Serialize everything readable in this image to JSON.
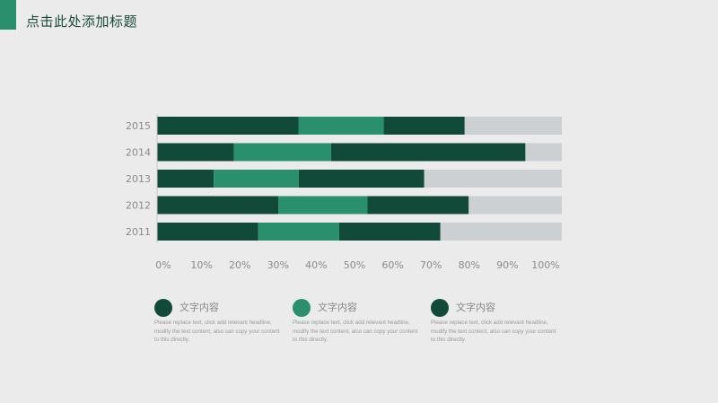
{
  "title": "点击此处添加标题",
  "colors": {
    "accent": "#2a8f6d",
    "dark": "#114a38",
    "mid": "#2a8f6d",
    "rest": "#ccd0d2"
  },
  "chart_data": {
    "type": "bar",
    "orientation": "horizontal",
    "stacked": true,
    "categories": [
      "2015",
      "2014",
      "2013",
      "2012",
      "2011"
    ],
    "series": [
      {
        "values": [
          35,
          19,
          14,
          30,
          25
        ],
        "color": "#114a38"
      },
      {
        "values": [
          21,
          24,
          21,
          22,
          20
        ],
        "color": "#2a8f6d"
      },
      {
        "values": [
          20,
          48,
          31,
          25,
          25
        ],
        "color": "#114a38"
      },
      {
        "values": [
          24,
          9,
          34,
          23,
          30
        ],
        "color": "#ccd0d2"
      }
    ],
    "x_ticks": [
      "0%",
      "10%",
      "20%",
      "30%",
      "40%",
      "50%",
      "60%",
      "70%",
      "80%",
      "90%",
      "100%"
    ],
    "xlim": [
      0,
      100
    ],
    "grid": false
  },
  "legend": [
    {
      "label": "文字内容",
      "color": "#114a38",
      "desc": "Please replace text, click add relevant headline, modify the text content, also can copy your content to this directly."
    },
    {
      "label": "文字内容",
      "color": "#2a8f6d",
      "desc": "Please replace text, click add relevant headline, modify the text content, also can copy your content to this directly."
    },
    {
      "label": "文字内容",
      "color": "#114a38",
      "desc": "Please replace text, click add relevant headline, modify the text content, also can copy your content to this directly."
    }
  ]
}
